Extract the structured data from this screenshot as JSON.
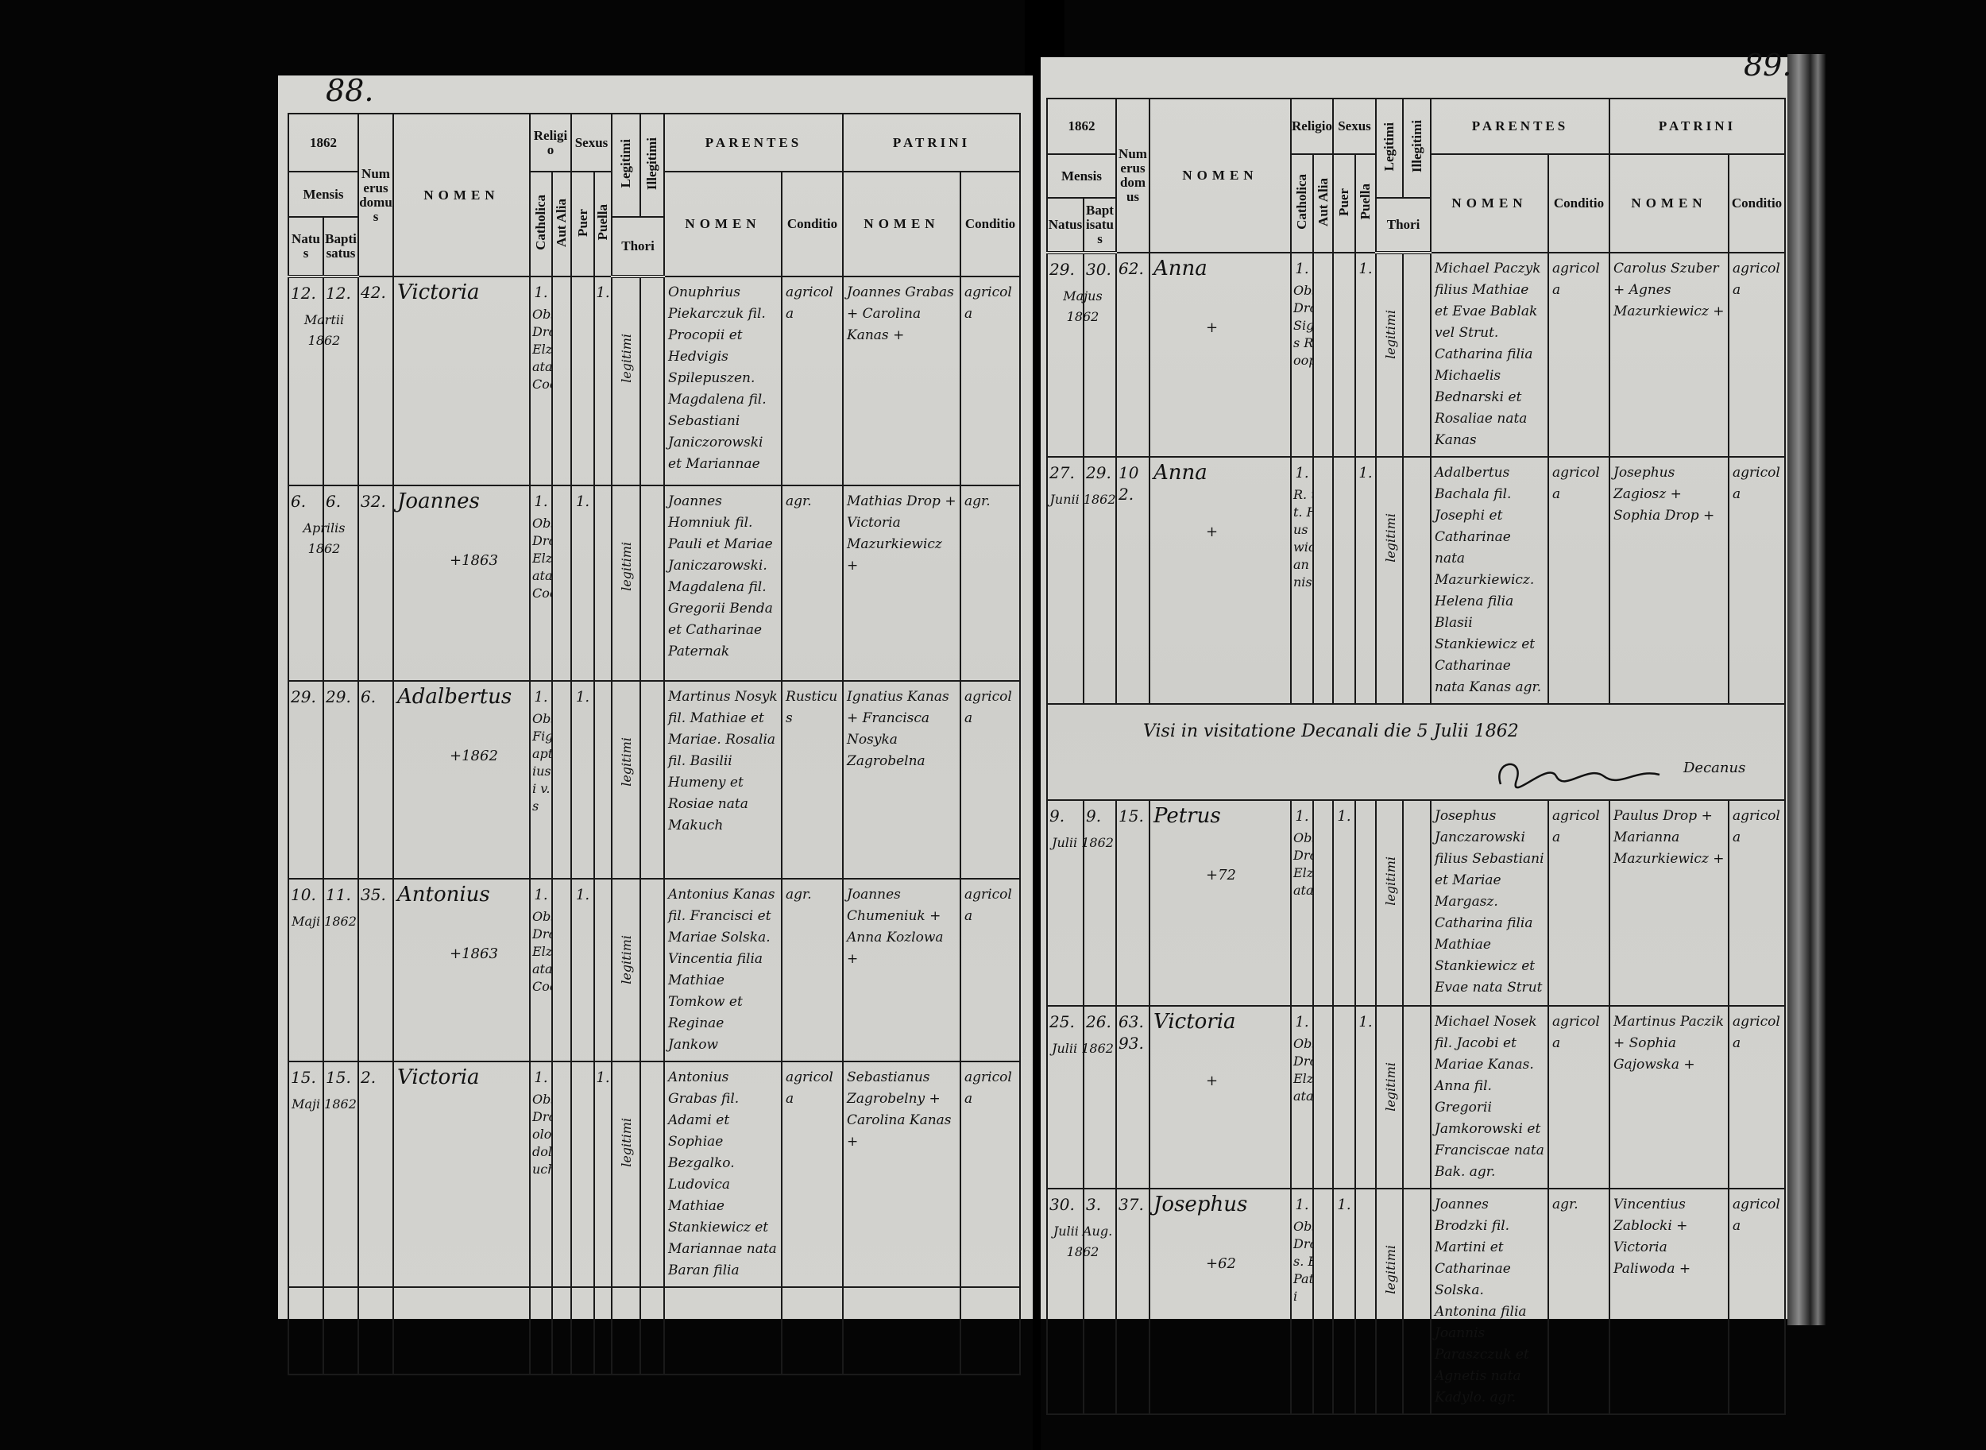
{
  "header": {
    "year": "1862",
    "mensis": "Mensis",
    "natus": "Natus",
    "baptisatus": "Baptisatus",
    "numerus_domus": "Numerus domus",
    "nomen": "NOMEN",
    "religio": "Religio",
    "catholica": "Catholica",
    "aut_alia": "Aut Alia",
    "sexus": "Sexus",
    "puer": "Puer",
    "puella": "Puella",
    "legitimi": "Legitimi",
    "illegitimi": "Illegitimi",
    "thori": "Thori",
    "parentes": "PARENTES",
    "patrini": "PATRINI",
    "sub_nomen": "NOMEN",
    "conditio": "Conditio"
  },
  "left_page": {
    "page_number": "88.",
    "entries": [
      {
        "natus": "12.",
        "baptisatus": "12.",
        "month": "Martii 1862",
        "domus": "42.",
        "name": "Victoria",
        "death": "",
        "catholica": "1.",
        "aut_alia": "",
        "puer": "",
        "puella": "1.",
        "notes": "Obst. Maria Drop Bapt. Elzearius Pataszewski Coop.",
        "legitimi": "legitimi",
        "parents": "Onuphrius Piekarczuk fil. Procopii et Hedvigis Spilepuszen. Magdalena fil. Sebastiani Janiczorowski et Mariannae",
        "parents_condition": "agricola",
        "godparents": "Joannes Grabas + Carolina Kanas +",
        "godparents_condition": "agricola"
      },
      {
        "natus": "6.",
        "baptisatus": "6.",
        "month": "Aprilis 1862",
        "domus": "32.",
        "name": "Joannes",
        "death": "+1863",
        "catholica": "1.",
        "aut_alia": "",
        "puer": "1.",
        "puella": "",
        "notes": "Obst. Maria Drop Bapt. Elzearius Pataszewski Coop.",
        "legitimi": "legitimi",
        "parents": "Joannes Homniuk fil. Pauli et Mariae Janiczarowski. Magdalena fil. Gregorii Benda et Catharinae Paternak",
        "parents_condition": "agr.",
        "godparents": "Mathias Drop + Victoria Mazurkiewicz +",
        "godparents_condition": "agr."
      },
      {
        "natus": "29.",
        "baptisatus": "29.",
        "month": "",
        "domus": "6.",
        "name": "Adalbertus",
        "death": "+1862",
        "catholica": "1.",
        "aut_alia": "",
        "puer": "1.",
        "puella": "",
        "notes": "Obst. Maria Figurska Bapt. Gregorius Bliwinski v. Parochus",
        "legitimi": "legitimi",
        "parents": "Martinus Nosyk fil. Mathiae et Mariae. Rosalia fil. Basilii Humeny et Rosiae nata Makuch",
        "parents_condition": "Rusticus",
        "godparents": "Ignatius Kanas + Francisca Nosyka Zagrobelna",
        "godparents_condition": "agricola"
      },
      {
        "natus": "10.",
        "baptisatus": "11.",
        "month": "Maji 1862",
        "domus": "35.",
        "name": "Antonius",
        "death": "+1863",
        "catholica": "1.",
        "aut_alia": "",
        "puer": "1.",
        "puella": "",
        "notes": "Obst. Maria Drop Bapt. Elzearius Pataszewski Coop. v.l.",
        "legitimi": "legitimi",
        "parents": "Antonius Kanas fil. Francisci et Mariae Solska. Vincentia filia Mathiae Tomkow et Reginae Jankow",
        "parents_condition": "agr.",
        "godparents": "Joannes Chumeniuk + Anna Kozlowa +",
        "godparents_condition": "agricola"
      },
      {
        "natus": "15.",
        "baptisatus": "15.",
        "month": "Maji 1862",
        "domus": "2.",
        "name": "Victoria",
        "death": "",
        "catholica": "1.",
        "aut_alia": "",
        "puer": "",
        "puella": "1.",
        "notes": "Obst. Maria Drop Bartholomaeus Adolphus Paluch",
        "legitimi": "legitimi",
        "parents": "Antonius Grabas fil. Adami et Sophiae Bezgalko. Ludovica Mathiae Stankiewicz et Mariannae nata Baran filia",
        "parents_condition": "agricola",
        "godparents": "Sebastianus Zagrobelny + Carolina Kanas +",
        "godparents_condition": "agricola"
      }
    ]
  },
  "right_page": {
    "page_number": "89.",
    "entries": [
      {
        "natus": "29.",
        "baptisatus": "30.",
        "month": "Majus 1862",
        "domus": "62.",
        "name": "Anna",
        "death": "+",
        "catholica": "1.",
        "aut_alia": "",
        "puer": "",
        "puella": "1.",
        "notes": "Obst. Maria Drop Bapt. Sigismundus Radwan Coop.",
        "legitimi": "legitimi",
        "parents": "Michael Paczyk filius Mathiae et Evae Bablak vel Strut. Catharina filia Michaelis Bednarski et Rosaliae nata Kanas",
        "parents_condition": "agricola",
        "godparents": "Carolus Szuber + Agnes Mazurkiewicz +",
        "godparents_condition": "agricola"
      },
      {
        "natus": "27.",
        "baptisatus": "29.",
        "month": "Junii 1862",
        "domus": "102.",
        "name": "Anna",
        "death": "+",
        "catholica": "1.",
        "aut_alia": "",
        "puer": "",
        "puella": "1.",
        "notes": "R. u. d. Bapt. Hyacynthus Szeligiewicz Guardian et Administr. v.l.",
        "legitimi": "legitimi",
        "parents": "Adalbertus Bachala fil. Josephi et Catharinae nata Mazurkiewicz. Helena filia Blasii Stankiewicz et Catharinae nata Kanas agr.",
        "parents_condition": "agricola",
        "godparents": "Josephus Zagiosz + Sophia Drop +",
        "godparents_condition": "agricola"
      }
    ],
    "visitation": {
      "text": "Visi in visitatione Decanali die 5 Julii 1862",
      "signature_title": "Decanus"
    },
    "entries_after": [
      {
        "natus": "9.",
        "baptisatus": "9.",
        "month": "Julii 1862",
        "domus": "15.",
        "name": "Petrus",
        "death": "+72",
        "catholica": "1.",
        "aut_alia": "",
        "puer": "1.",
        "puella": "",
        "notes": "Obst. Maria Drop Bapt. Elzearius Pataszewski",
        "legitimi": "legitimi",
        "parents": "Josephus Janczarowski filius Sebastiani et Mariae Margasz. Catharina filia Mathiae Stankiewicz et Evae nata Strut",
        "parents_condition": "agricola",
        "godparents": "Paulus Drop + Marianna Mazurkiewicz +",
        "godparents_condition": "agricola"
      },
      {
        "natus": "25.",
        "baptisatus": "26.",
        "month": "Julii 1862",
        "domus": "63. 93.",
        "name": "Victoria",
        "death": "+",
        "catholica": "1.",
        "aut_alia": "",
        "puer": "",
        "puella": "1.",
        "notes": "Obst. Maria Drop. Bapt. Elzearius Pataszewski",
        "legitimi": "legitimi",
        "parents": "Michael Nosek fil. Jacobi et Mariae Kanas. Anna fil. Gregorii Jamkorowski et Franciscae nata Bak. agr.",
        "parents_condition": "agricola",
        "godparents": "Martinus Paczik + Sophia Gajowska +",
        "godparents_condition": "agricola"
      },
      {
        "natus": "30.",
        "baptisatus": "3.",
        "month": "Julii Aug. 1862",
        "domus": "37.",
        "name": "Josephus",
        "death": "+62",
        "catholica": "1.",
        "aut_alia": "",
        "puer": "1.",
        "puella": "",
        "notes": "Obst. Maria Drop Baptis. Elzearius Pataszewski",
        "legitimi": "legitimi",
        "parents": "Joannes Brodzki fil. Martini et Catharinae Solska. Antonina filia Joannis Paraszczuk et Agnetis nata Kadylo. agr.",
        "parents_condition": "agr.",
        "godparents": "Vincentius Zablocki + Victoria Paliwoda +",
        "godparents_condition": "agricola"
      }
    ]
  }
}
